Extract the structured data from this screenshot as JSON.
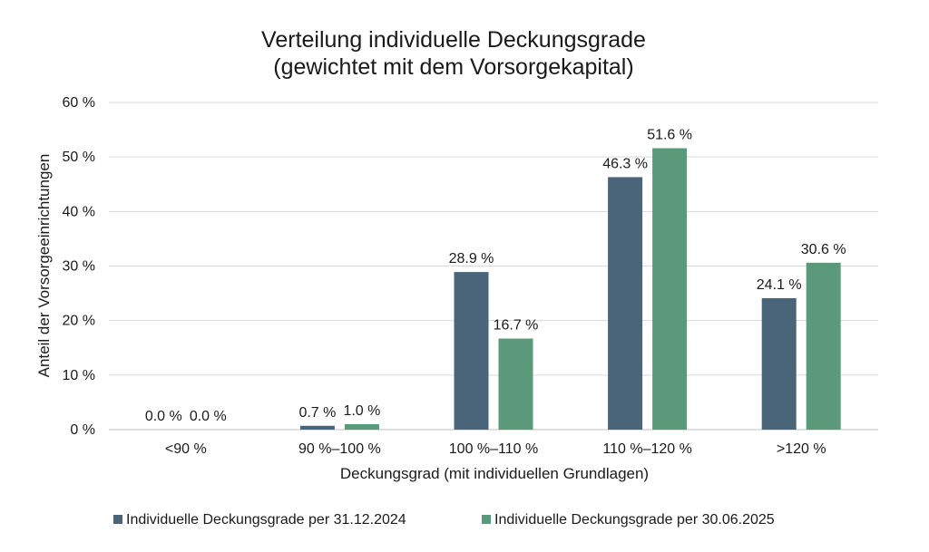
{
  "chart_data": {
    "type": "bar",
    "title_lines": [
      "Verteilung individuelle Deckungsgrade",
      "(gewichtet mit dem Vorsorgekapital)"
    ],
    "xlabel": "Deckungsgrad (mit individuellen Grundlagen)",
    "ylabel": "Anteil der Vorsorgeeinrichtungen",
    "categories": [
      "<90 %",
      "90 %–100 %",
      "100 %–110 %",
      "110 %–120 %",
      ">120 %"
    ],
    "ylim": [
      0,
      60
    ],
    "y_ticks": [
      0,
      10,
      20,
      30,
      40,
      50,
      60
    ],
    "y_tick_labels": [
      "0 %",
      "10 %",
      "20 %",
      "30 %",
      "40 %",
      "50 %",
      "60 %"
    ],
    "grid": true,
    "legend_position": "bottom",
    "series": [
      {
        "name": "Individuelle Deckungsgrade per 31.12.2024",
        "color": "#4a6479",
        "values": [
          0.0,
          0.7,
          28.9,
          46.3,
          24.1
        ],
        "labels": [
          "0.0 %",
          "0.7 %",
          "28.9 %",
          "46.3 %",
          "24.1 %"
        ]
      },
      {
        "name": "Individuelle Deckungsgrade per 30.06.2025",
        "color": "#5a9a7a",
        "values": [
          0.0,
          1.0,
          16.7,
          51.6,
          30.6
        ],
        "labels": [
          "0.0 %",
          "1.0 %",
          "16.7 %",
          "51.6 %",
          "30.6 %"
        ]
      }
    ]
  }
}
